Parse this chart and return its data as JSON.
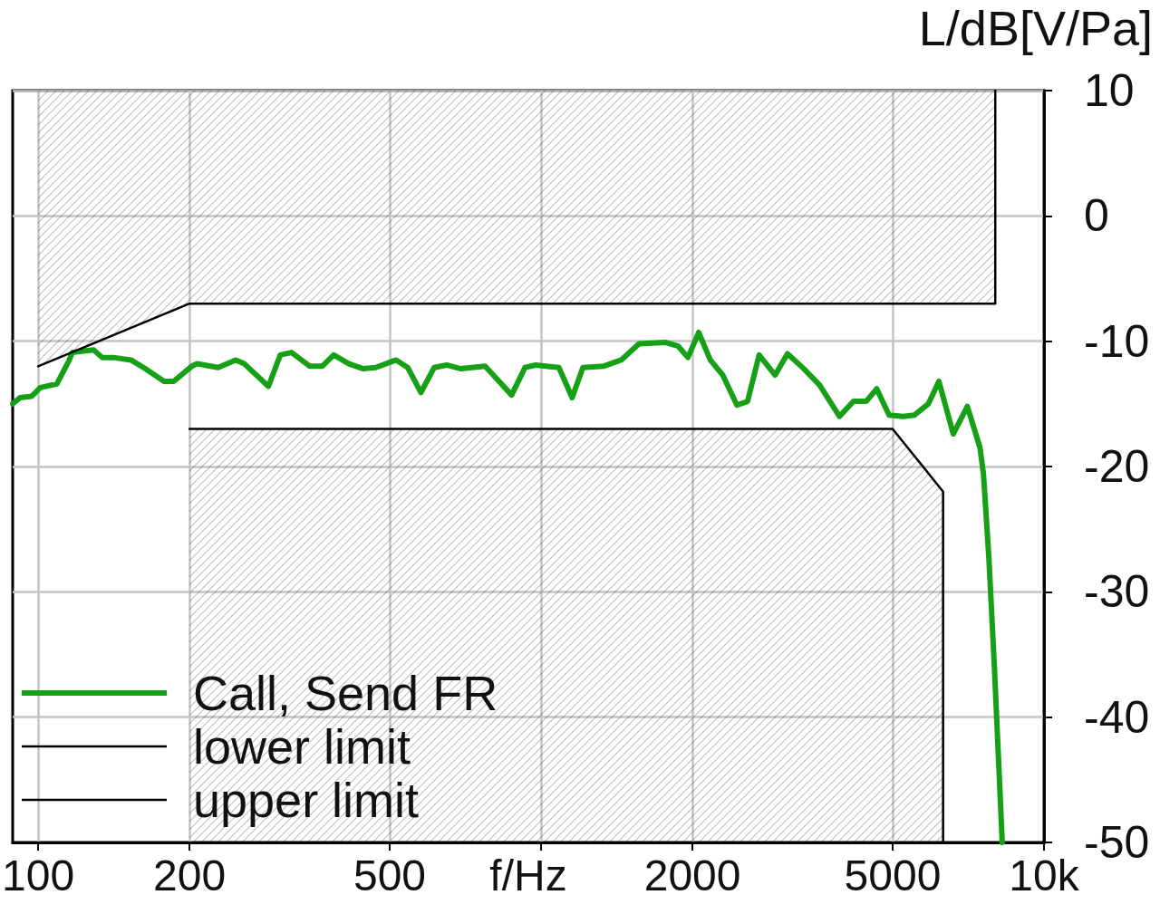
{
  "chart_data": {
    "type": "line",
    "xlabel": "f/Hz",
    "ylabel": "L/dB[V/Pa]",
    "log": "x",
    "xlim": [
      89,
      10000
    ],
    "xticks": [
      100,
      200,
      500,
      {
        "value": 1000,
        "label": null
      },
      2000,
      5000,
      {
        "value": 10000,
        "label": "10k"
      }
    ],
    "ylim": [
      -50,
      10
    ],
    "yticks": [
      -50,
      -40,
      -30,
      -20,
      -10,
      0,
      10
    ],
    "grid": true,
    "legend": "bottom left",
    "marker": "none",
    "series": [
      {
        "name": "Call, Send FR",
        "color": "#16a016",
        "x": [
          89,
          92,
          97,
          101,
          109,
          115,
          117,
          122,
          129,
          134,
          141,
          153,
          162,
          178,
          186,
          202,
          207,
          228,
          247,
          257,
          287,
          303,
          319,
          347,
          367,
          387,
          415,
          443,
          469,
          515,
          543,
          577,
          613,
          649,
          693,
          774,
          874,
          929,
          976,
          1085,
          1153,
          1211,
          1330,
          1443,
          1566,
          1769,
          1874,
          1959,
          2058,
          2170,
          2297,
          2452,
          2574,
          2714,
          2920,
          3090,
          3330,
          3580,
          3920,
          4180,
          4430,
          4650,
          4920,
          5250,
          5520,
          5890,
          6180,
          6600,
          7040,
          7460,
          7580,
          7770,
          7960,
          8260
        ],
        "values": [
          -15.0,
          -14.5,
          -14.4,
          -13.7,
          -13.4,
          -11.6,
          -10.9,
          -10.8,
          -10.7,
          -11.3,
          -11.3,
          -11.5,
          -12.1,
          -13.2,
          -13.2,
          -12.0,
          -11.8,
          -12.1,
          -11.5,
          -11.8,
          -13.6,
          -11.1,
          -10.9,
          -12.0,
          -12.0,
          -11.1,
          -11.8,
          -12.2,
          -12.1,
          -11.5,
          -12.1,
          -14.1,
          -12.1,
          -11.9,
          -12.2,
          -12.0,
          -14.3,
          -12.1,
          -11.9,
          -12.1,
          -14.5,
          -12.1,
          -12.0,
          -11.5,
          -10.2,
          -10.1,
          -10.4,
          -11.3,
          -9.3,
          -11.5,
          -12.7,
          -15.1,
          -14.8,
          -11.1,
          -12.7,
          -11.0,
          -12.2,
          -13.5,
          -16.0,
          -14.8,
          -14.8,
          -13.8,
          -15.9,
          -16.0,
          -15.9,
          -15.0,
          -13.2,
          -17.4,
          -15.2,
          -18.5,
          -20.6,
          -27.3,
          -35.6,
          -50
        ]
      },
      {
        "name": "lower limit",
        "color": "#000000",
        "x": [
          200,
          5000,
          6300,
          6300
        ],
        "values": [
          -17,
          -17,
          -22,
          -50
        ],
        "lower": [
          -50,
          -50,
          -50,
          -50
        ],
        "upper": [
          -17,
          -17,
          -22,
          -50
        ]
      },
      {
        "name": "upper limit",
        "color": "#000000",
        "x": [
          100,
          200,
          8000,
          8000
        ],
        "values": [
          -12,
          -7,
          -7,
          10
        ],
        "lower": [
          -12,
          -7,
          -7,
          10
        ],
        "upper": [
          10,
          10,
          10,
          10
        ]
      }
    ]
  }
}
